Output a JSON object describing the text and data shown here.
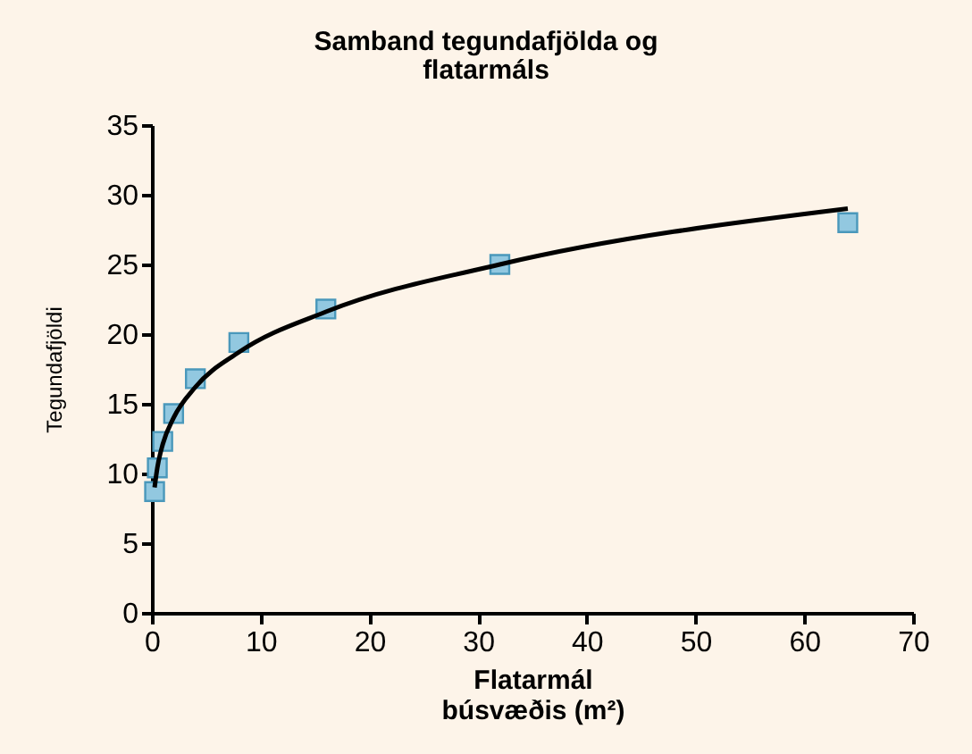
{
  "chart_data": {
    "type": "scatter",
    "title": "Samband tegundafjölda og\nflatarmáls",
    "xlabel": "Flatarmál\nbúsvæðis (m²)",
    "ylabel": "Tegundafjöldi",
    "xlim": [
      0,
      70
    ],
    "xticks": [
      0,
      10,
      20,
      30,
      40,
      50,
      60,
      70
    ],
    "ylim": [
      0,
      35
    ],
    "yticks": [
      0,
      5,
      10,
      15,
      20,
      25,
      30,
      35
    ],
    "grid": false,
    "series": [
      {
        "marker": "square",
        "color": "#92c8e0",
        "x": [
          0.25,
          0.5,
          1,
          2,
          4,
          8,
          16,
          32,
          64
        ],
        "values": [
          8.7,
          10.4,
          12.3,
          14.3,
          16.8,
          19.4,
          21.8,
          25.0,
          28.0
        ]
      },
      {
        "type": "line",
        "marker": "none",
        "line_style": "solid",
        "color": "#000000",
        "x": [
          0.25,
          0.5,
          1,
          2,
          4,
          8,
          16,
          32,
          64
        ],
        "values": [
          9.0,
          10.4,
          12.1,
          14.0,
          16.2,
          18.7,
          21.6,
          25.0,
          29.0
        ]
      }
    ]
  }
}
